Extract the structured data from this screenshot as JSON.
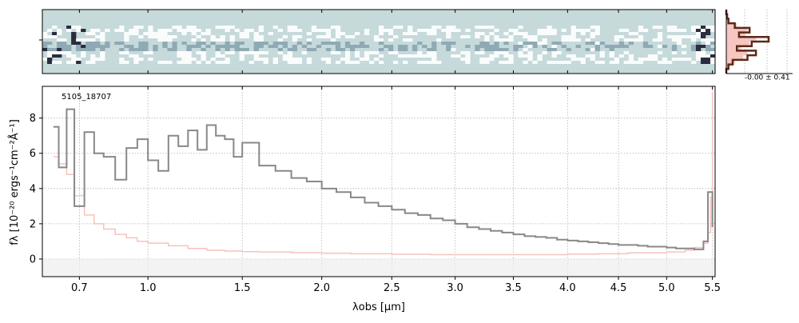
{
  "chart_data": [
    {
      "type": "heatmap",
      "panel": "2D spectrum",
      "colormap": [
        "#c6dadb",
        "#ffffff",
        "#8aa4b0",
        "#1a1a2e"
      ],
      "background": "#c6dadb",
      "description_rows": 12
    },
    {
      "type": "line",
      "panel": "cross-dispersion profile",
      "annotation": "-0.00 ± 0.41",
      "series": [
        {
          "color": "#5a2a1a",
          "profile": [
            0.0,
            0.02,
            0.05,
            0.2,
            0.55,
            0.3,
            1.0,
            0.6,
            0.25,
            0.7,
            0.5,
            0.15,
            0.05,
            0.0
          ]
        },
        {
          "color": "#f5b8b0",
          "profile": [
            0.0,
            0.03,
            0.08,
            0.25,
            0.5,
            0.45,
            0.7,
            0.55,
            0.35,
            0.5,
            0.4,
            0.2,
            0.08,
            0.0
          ]
        }
      ]
    },
    {
      "type": "line",
      "panel": "1D spectrum",
      "label": "5105_18707",
      "xlabel": "λobs [μm]",
      "ylabel": "fλ [10⁻²⁰ ergs⁻¹cm⁻²Å⁻¹]",
      "xlim": [
        0.56,
        5.53
      ],
      "ylim": [
        -1.0,
        9.8
      ],
      "xscale": "sqrt",
      "grid": true,
      "xticks": [
        0.7,
        1.0,
        1.5,
        2.0,
        2.5,
        3.0,
        3.5,
        4.0,
        4.5,
        5.0,
        5.5
      ],
      "xticklabels": [
        "0.7",
        "1.0",
        "1.5",
        "2.0",
        "2.5",
        "3.0",
        "3.5",
        "4.0",
        "4.5",
        "5.0",
        "5.5"
      ],
      "yticks": [
        0,
        2,
        4,
        6,
        8
      ],
      "yticklabels": [
        "0",
        "2",
        "4",
        "6",
        "8"
      ],
      "series": [
        {
          "color": "#888888",
          "x": [
            0.6,
            0.62,
            0.65,
            0.68,
            0.72,
            0.76,
            0.8,
            0.85,
            0.9,
            0.95,
            1.0,
            1.05,
            1.1,
            1.15,
            1.2,
            1.25,
            1.3,
            1.35,
            1.4,
            1.45,
            1.5,
            1.6,
            1.7,
            1.8,
            1.9,
            2.0,
            2.1,
            2.2,
            2.3,
            2.4,
            2.5,
            2.6,
            2.7,
            2.8,
            2.9,
            3.0,
            3.1,
            3.2,
            3.3,
            3.4,
            3.5,
            3.6,
            3.7,
            3.8,
            3.9,
            4.0,
            4.1,
            4.2,
            4.3,
            4.4,
            4.5,
            4.6,
            4.7,
            4.8,
            4.9,
            5.0,
            5.1,
            5.2,
            5.3,
            5.4,
            5.45,
            5.5
          ],
          "y": [
            7.5,
            5.2,
            8.5,
            3.0,
            7.2,
            6.0,
            5.8,
            4.5,
            6.3,
            6.8,
            5.6,
            5.0,
            7.0,
            6.4,
            7.3,
            6.2,
            7.6,
            7.0,
            6.8,
            5.8,
            6.6,
            5.3,
            5.0,
            4.6,
            4.4,
            4.0,
            3.8,
            3.5,
            3.2,
            3.0,
            2.8,
            2.6,
            2.5,
            2.3,
            2.2,
            2.0,
            1.8,
            1.7,
            1.6,
            1.5,
            1.4,
            1.3,
            1.25,
            1.2,
            1.1,
            1.05,
            1.0,
            0.95,
            0.9,
            0.85,
            0.8,
            0.8,
            0.75,
            0.7,
            0.7,
            0.65,
            0.6,
            0.6,
            0.55,
            1.0,
            3.8,
            1.8
          ]
        },
        {
          "color": "#f7c2bd",
          "x": [
            0.6,
            0.62,
            0.65,
            0.68,
            0.72,
            0.76,
            0.8,
            0.85,
            0.9,
            0.95,
            1.0,
            1.1,
            1.2,
            1.3,
            1.4,
            1.5,
            1.6,
            1.8,
            2.0,
            2.2,
            2.5,
            2.8,
            3.0,
            3.3,
            3.6,
            4.0,
            4.3,
            4.6,
            5.0,
            5.2,
            5.3,
            5.4,
            5.45,
            5.48,
            5.5
          ],
          "y": [
            5.8,
            5.4,
            4.8,
            3.6,
            2.5,
            2.0,
            1.7,
            1.4,
            1.2,
            1.0,
            0.9,
            0.75,
            0.6,
            0.5,
            0.45,
            0.42,
            0.4,
            0.36,
            0.33,
            0.3,
            0.27,
            0.25,
            0.25,
            0.25,
            0.25,
            0.28,
            0.3,
            0.35,
            0.4,
            0.5,
            0.65,
            0.9,
            1.5,
            3.5,
            9.5
          ]
        }
      ]
    }
  ]
}
